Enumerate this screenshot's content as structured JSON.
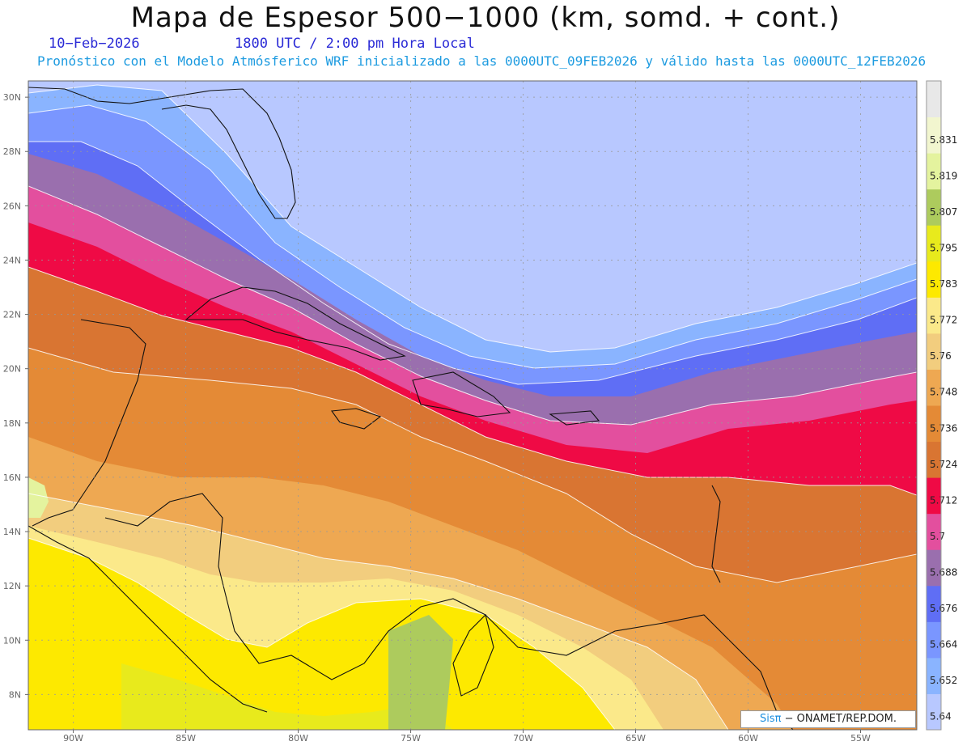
{
  "header": {
    "title": "Mapa de Espesor 500−1000 (km, somd. + cont.)",
    "date": "10−Feb−2026",
    "time": "1800 UTC / 2:00 pm Hora Local",
    "subtitle": "Pronóstico con el Modelo Atmósferico WRF inicializado a las 0000UTC_09FEB2026 y válido hasta las  0000UTC_12FEB2026"
  },
  "map": {
    "lon_range": [
      -92,
      -52.5
    ],
    "lat_range": [
      6.7,
      30.6
    ],
    "lon_ticks": [
      "90W",
      "85W",
      "80W",
      "75W",
      "70W",
      "65W",
      "60W",
      "55W"
    ],
    "lon_values": [
      -90,
      -85,
      -80,
      -75,
      -70,
      -65,
      -60,
      -55
    ],
    "lat_ticks": [
      "30N",
      "28N",
      "26N",
      "24N",
      "22N",
      "20N",
      "18N",
      "16N",
      "14N",
      "12N",
      "10N",
      "8N"
    ],
    "lat_values": [
      30,
      28,
      26,
      24,
      22,
      20,
      18,
      16,
      14,
      12,
      10,
      8
    ],
    "grid": "on"
  },
  "colorbar": {
    "labels": [
      "5.64",
      "5.652",
      "5.664",
      "5.676",
      "5.688",
      "5.7",
      "5.712",
      "5.724",
      "5.736",
      "5.748",
      "5.76",
      "5.772",
      "5.783",
      "5.795",
      "5.807",
      "5.819",
      "5.831"
    ],
    "colors": [
      "#b8c8ff",
      "#8ab4ff",
      "#7a96ff",
      "#5f6ef5",
      "#9a6fae",
      "#e34f9e",
      "#ef0a45",
      "#d97532",
      "#e48a36",
      "#eea852",
      "#f2cd7e",
      "#fbe98a",
      "#fde900",
      "#e8ea1c",
      "#adcb5d",
      "#e4f39e",
      "#f2f6cf",
      "#e8e8e8"
    ]
  },
  "credit": {
    "sis": "Sis",
    "pi": "π",
    "org": "− ONAMET/REP.DOM."
  }
}
